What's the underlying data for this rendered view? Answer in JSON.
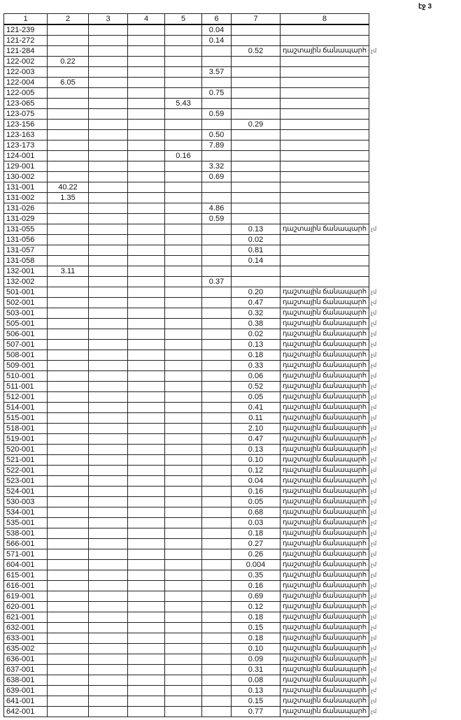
{
  "page_label": "էջ 3",
  "header": [
    "1",
    "2",
    "3",
    "4",
    "5",
    "6",
    "7",
    "8"
  ],
  "field_road_text": "դաշտային ճանապարհ",
  "margin_mark": "չմ",
  "rows": [
    {
      "c1": "121-239",
      "c6": "0.04"
    },
    {
      "c1": "121-272",
      "c6": "0.14"
    },
    {
      "c1": "121-284",
      "c7": "0.52",
      "c8": "դաշտային ճանապարհ"
    },
    {
      "c1": "122-002",
      "c2": "0.22"
    },
    {
      "c1": "122-003",
      "c6": "3.57"
    },
    {
      "c1": "122-004",
      "c2": "6.05"
    },
    {
      "c1": "122-005",
      "c6": "0.75"
    },
    {
      "c1": "123-065",
      "c5": "5.43"
    },
    {
      "c1": "123-075",
      "c6": "0.59"
    },
    {
      "c1": "123-156",
      "c7": "0.29"
    },
    {
      "c1": "123-163",
      "c6": "0.50"
    },
    {
      "c1": "123-173",
      "c6": "7.89"
    },
    {
      "c1": "124-001",
      "c5": "0.16"
    },
    {
      "c1": "129-001",
      "c6": "3.32"
    },
    {
      "c1": "130-002",
      "c6": "0.69"
    },
    {
      "c1": "131-001",
      "c2": "40.22"
    },
    {
      "c1": "131-002",
      "c2": "1.35"
    },
    {
      "c1": "131-026",
      "c6": "4.86"
    },
    {
      "c1": "131-029",
      "c6": "0.59"
    },
    {
      "c1": "131-055",
      "c7": "0.13",
      "c8": "դաշտային ճանապարհ"
    },
    {
      "c1": "131-056",
      "c7": "0.02"
    },
    {
      "c1": "131-057",
      "c7": "0.81"
    },
    {
      "c1": "131-058",
      "c7": "0.14"
    },
    {
      "c1": "132-001",
      "c2": "3.11"
    },
    {
      "c1": "132-002",
      "c6": "0.37"
    },
    {
      "c1": "501-001",
      "c7": "0.20",
      "c8": "դաշտային ճանապարհ"
    },
    {
      "c1": "502-001",
      "c7": "0.47",
      "c8": "դաշտային ճանապարհ"
    },
    {
      "c1": "503-001",
      "c7": "0.32",
      "c8": "դաշտային ճանապարհ"
    },
    {
      "c1": "505-001",
      "c7": "0.38",
      "c8": "դաշտային ճանապարհ"
    },
    {
      "c1": "506-001",
      "c7": "0.02",
      "c8": "դաշտային ճանապարհ"
    },
    {
      "c1": "507-001",
      "c7": "0.13",
      "c8": "դաշտային ճանապարհ"
    },
    {
      "c1": "508-001",
      "c7": "0.18",
      "c8": "դաշտային ճանապարհ"
    },
    {
      "c1": "509-001",
      "c7": "0.33",
      "c8": "դաշտային ճանապարհ"
    },
    {
      "c1": "510-001",
      "c7": "0.06",
      "c8": "դաշտային ճանապարհ"
    },
    {
      "c1": "511-001",
      "c7": "0.52",
      "c8": "դաշտային ճանապարհ"
    },
    {
      "c1": "512-001",
      "c7": "0.05",
      "c8": "դաշտային ճանապարհ"
    },
    {
      "c1": "514-001",
      "c7": "0.41",
      "c8": "դաշտային ճանապարհ"
    },
    {
      "c1": "515-001",
      "c7": "0.11",
      "c8": "դաշտային ճանապարհ"
    },
    {
      "c1": "518-001",
      "c7": "2.10",
      "c8": "դաշտային ճանապարհ"
    },
    {
      "c1": "519-001",
      "c7": "0.47",
      "c8": "դաշտային ճանապարհ"
    },
    {
      "c1": "520-001",
      "c7": "0.13",
      "c8": "դաշտային ճանապարհ"
    },
    {
      "c1": "521-001",
      "c7": "0.10",
      "c8": "դաշտային ճանապարհ"
    },
    {
      "c1": "522-001",
      "c7": "0.12",
      "c8": "դաշտային ճանապարհ"
    },
    {
      "c1": "523-001",
      "c7": "0.04",
      "c8": "դաշտային ճանապարհ"
    },
    {
      "c1": "524-001",
      "c7": "0.16",
      "c8": "դաշտային ճանապարհ"
    },
    {
      "c1": "530-003",
      "c7": "0.05",
      "c8": "դաշտային ճանապարհ"
    },
    {
      "c1": "534-001",
      "c7": "0.68",
      "c8": "դաշտային ճանապարհ"
    },
    {
      "c1": "535-001",
      "c7": "0.03",
      "c8": "դաշտային ճանապարհ"
    },
    {
      "c1": "538-001",
      "c7": "0.18",
      "c8": "դաշտային ճանապարհ"
    },
    {
      "c1": "566-001",
      "c7": "0.27",
      "c8": "դաշտային ճանապարհ"
    },
    {
      "c1": "571-001",
      "c7": "0.26",
      "c8": "դաշտային ճանապարհ"
    },
    {
      "c1": "604-001",
      "c7": "0.004",
      "c8": "դաշտային ճանապարհ"
    },
    {
      "c1": "615-001",
      "c7": "0.35",
      "c8": "դաշտային ճանապարհ"
    },
    {
      "c1": "616-001",
      "c7": "0.16",
      "c8": "դաշտային ճանապարհ"
    },
    {
      "c1": "619-001",
      "c7": "0.69",
      "c8": "դաշտային ճանապարհ"
    },
    {
      "c1": "620-001",
      "c7": "0.12",
      "c8": "դաշտային ճանապարհ"
    },
    {
      "c1": "621-001",
      "c7": "0.18",
      "c8": "դաշտային ճանապարհ"
    },
    {
      "c1": "632-001",
      "c7": "0.15",
      "c8": "դաշտային ճանապարհ"
    },
    {
      "c1": "633-001",
      "c7": "0.18",
      "c8": "դաշտային ճանապարհ"
    },
    {
      "c1": "635-002",
      "c7": "0.10",
      "c8": "դաշտային ճանապարհ"
    },
    {
      "c1": "636-001",
      "c7": "0.09",
      "c8": "դաշտային ճանապարհ"
    },
    {
      "c1": "637-001",
      "c7": "0.31",
      "c8": "դաշտային ճանապարհ"
    },
    {
      "c1": "638-001",
      "c7": "0.08",
      "c8": "դաշտային ճանապարհ"
    },
    {
      "c1": "639-001",
      "c7": "0.13",
      "c8": "դաշտային ճանապարհ"
    },
    {
      "c1": "641-001",
      "c7": "0.15",
      "c8": "դաշտային ճանապարհ"
    },
    {
      "c1": "642-001",
      "c7": "0.77",
      "c8": "դաշտային ճանապարհ"
    }
  ]
}
